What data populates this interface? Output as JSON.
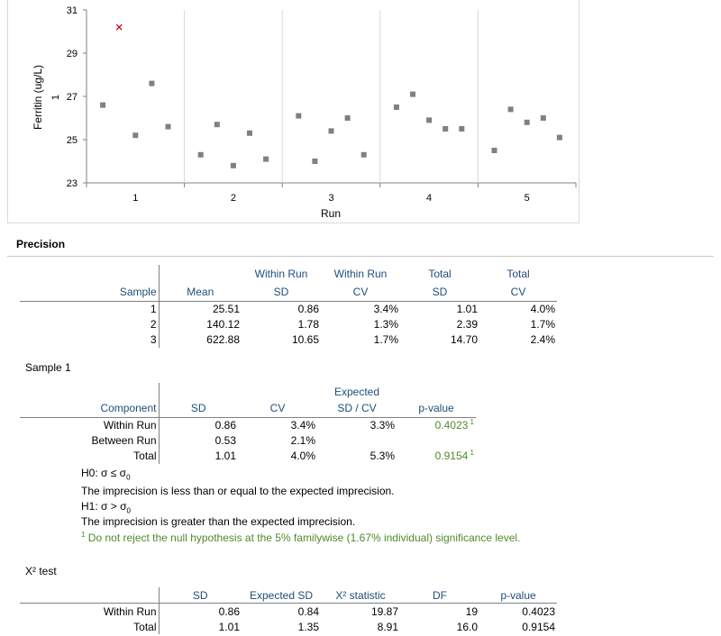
{
  "chart_data": {
    "type": "scatter",
    "xlabel": "Run",
    "ylabel": "Ferritin (ug/L)",
    "ylabel2": "1",
    "ylim": [
      23,
      31
    ],
    "yticks": [
      23,
      25,
      27,
      29,
      31
    ],
    "categories": [
      "1",
      "2",
      "3",
      "4",
      "5"
    ],
    "grid": "vertical separators between runs",
    "colors": {
      "point": "#808080",
      "outlier": "#c00000"
    },
    "runs": [
      [
        26.6,
        25.2,
        27.6,
        25.6
      ],
      [
        24.3,
        25.7,
        23.8,
        25.3,
        24.1
      ],
      [
        26.1,
        24.0,
        25.4,
        26.0,
        24.3
      ],
      [
        26.5,
        27.1,
        25.9,
        25.5,
        25.5
      ],
      [
        24.5,
        26.4,
        25.8,
        26.0,
        25.1
      ]
    ],
    "outliers": [
      {
        "run": 1,
        "position": 2,
        "value": 30.2
      }
    ]
  },
  "precision": {
    "title": "Precision",
    "headers_top": [
      "",
      "",
      "Within Run",
      "Within Run",
      "Total",
      "Total"
    ],
    "headers": [
      "Sample",
      "Mean",
      "SD",
      "CV",
      "SD",
      "CV"
    ],
    "rows": [
      [
        "1",
        "25.51",
        "0.86",
        "3.4%",
        "1.01",
        "4.0%"
      ],
      [
        "2",
        "140.12",
        "1.78",
        "1.3%",
        "2.39",
        "1.7%"
      ],
      [
        "3",
        "622.88",
        "10.65",
        "1.7%",
        "14.70",
        "2.4%"
      ]
    ]
  },
  "sample1": {
    "title": "Sample 1",
    "headers_top": [
      "",
      "",
      "",
      "Expected",
      ""
    ],
    "headers": [
      "Component",
      "SD",
      "CV",
      "SD / CV",
      "p-value"
    ],
    "rows": [
      {
        "c": "Within Run",
        "sd": "0.86",
        "cv": "3.4%",
        "exp": "3.3%",
        "p": "0.4023",
        "sup": "1"
      },
      {
        "c": "Between Run",
        "sd": "0.53",
        "cv": "2.1%",
        "exp": "",
        "p": "",
        "sup": ""
      },
      {
        "c": "Total",
        "sd": "1.01",
        "cv": "4.0%",
        "exp": "5.3%",
        "p": "0.9154",
        "sup": "1"
      }
    ],
    "h0_label": "H0: σ ≤ σ",
    "h0_sub": "0",
    "h0_text": "The imprecision is less than or equal to the expected imprecision.",
    "h1_label": "H1: σ > σ",
    "h1_sub": "0",
    "h1_text": "The imprecision is greater than the expected imprecision.",
    "footnote_mark": "1",
    "footnote": "Do not reject the null hypothesis at the 5% familywise (1.67% individual) significance level."
  },
  "chisq": {
    "title": "X² test",
    "headers": [
      "",
      "SD",
      "Expected SD",
      "X² statistic",
      "DF",
      "p-value"
    ],
    "rows": [
      [
        "Within Run",
        "0.86",
        "0.84",
        "19.87",
        "19",
        "0.4023"
      ],
      [
        "Total",
        "1.01",
        "1.35",
        "8.91",
        "16.0",
        "0.9154"
      ]
    ]
  }
}
